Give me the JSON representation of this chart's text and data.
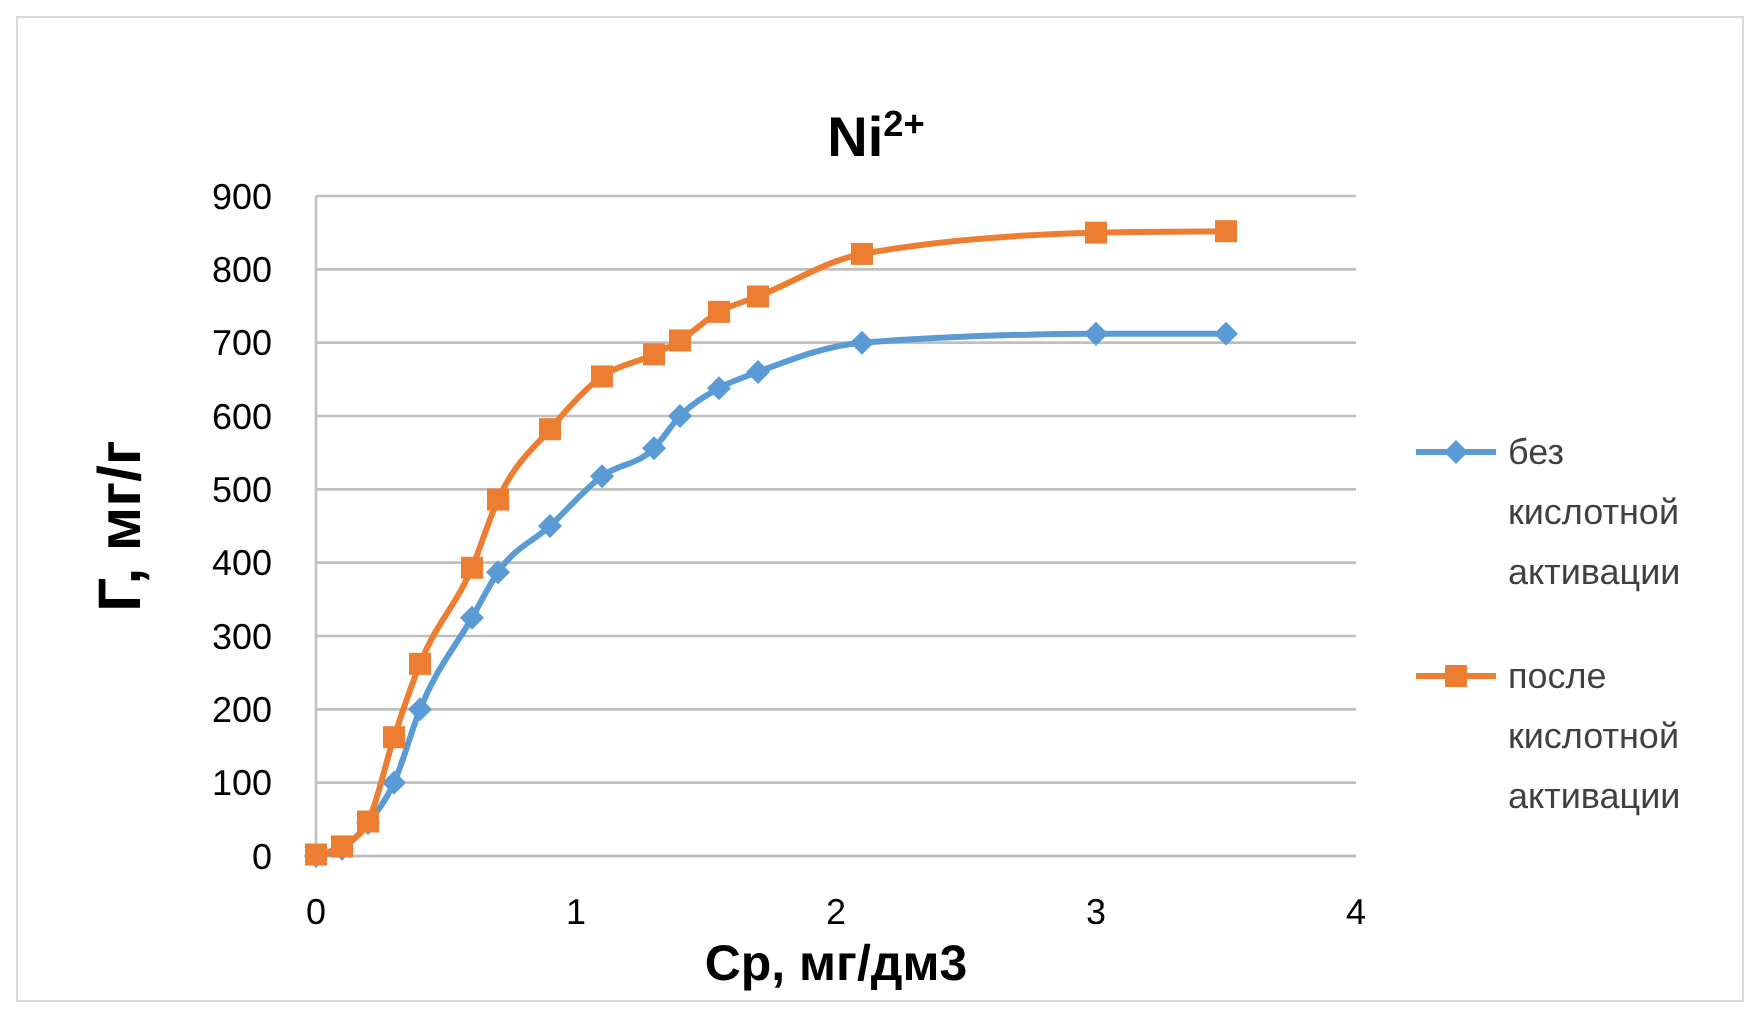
{
  "chart_data": {
    "type": "line",
    "title": "Ni$^{2+}$",
    "xlabel": "Ср, мг/дм3",
    "ylabel": "Г, мг/г",
    "xlim": [
      0,
      4
    ],
    "xticks": [
      0,
      1,
      2,
      3,
      4
    ],
    "ylim": [
      0,
      900
    ],
    "yticks": [
      0,
      100,
      200,
      300,
      400,
      500,
      600,
      700,
      800,
      900
    ],
    "grid": "y",
    "legend": "right",
    "series": [
      {
        "name": "без кислотной активации",
        "color": "#5b9bd5",
        "marker": "diamond",
        "x": [
          0,
          0.1,
          0.2,
          0.3,
          0.4,
          0.6,
          0.7,
          0.9,
          1.1,
          1.3,
          1.4,
          1.55,
          1.7,
          2.1,
          3.0,
          3.5
        ],
        "values": [
          0,
          10,
          45,
          100,
          200,
          325,
          387,
          450,
          518,
          556,
          600,
          638,
          660,
          700,
          712,
          712
        ]
      },
      {
        "name": "после кислотной активации",
        "color": "#ed7d31",
        "marker": "square",
        "x": [
          0,
          0.1,
          0.2,
          0.3,
          0.4,
          0.6,
          0.7,
          0.9,
          1.1,
          1.3,
          1.4,
          1.55,
          1.7,
          2.1,
          3.0,
          3.5
        ],
        "values": [
          2,
          13,
          47,
          162,
          262,
          393,
          486,
          582,
          654,
          684,
          703,
          742,
          763,
          821,
          850,
          852
        ]
      }
    ]
  }
}
